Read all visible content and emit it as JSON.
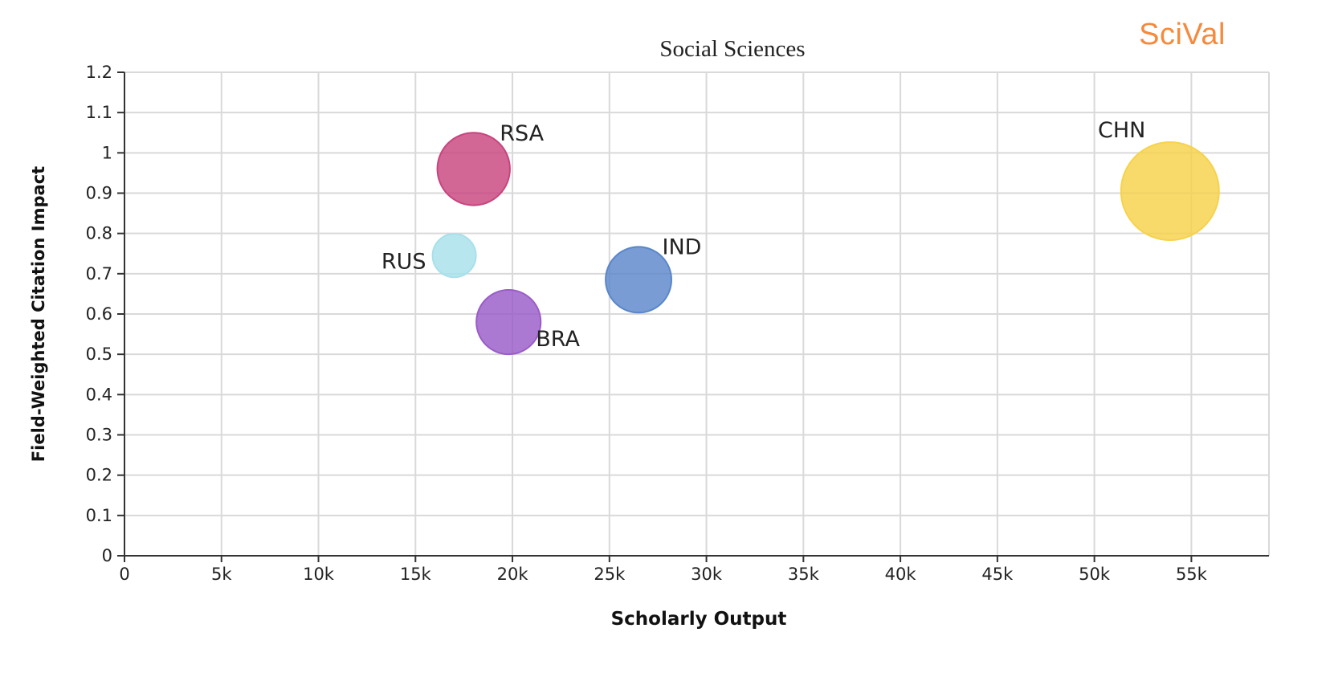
{
  "brand": {
    "name": "SciVal",
    "color": "#f58a3c"
  },
  "chart_data": {
    "type": "scatter",
    "subtype": "bubble",
    "title": "Social Sciences",
    "xlabel": "Scholarly Output",
    "ylabel": "Field-Weighted Citation Impact",
    "xlim": [
      0,
      59000
    ],
    "ylim": [
      0,
      1.2
    ],
    "xticks": [
      0,
      5000,
      10000,
      15000,
      20000,
      25000,
      30000,
      35000,
      40000,
      45000,
      50000,
      55000
    ],
    "xtick_labels": [
      "0",
      "5k",
      "10k",
      "15k",
      "20k",
      "25k",
      "30k",
      "35k",
      "40k",
      "45k",
      "50k",
      "55k"
    ],
    "yticks": [
      0,
      0.1,
      0.2,
      0.3,
      0.4,
      0.5,
      0.6,
      0.7,
      0.8,
      0.9,
      1,
      1.1,
      1.2
    ],
    "ytick_labels": [
      "0",
      "0.1",
      "0.2",
      "0.3",
      "0.4",
      "0.5",
      "0.6",
      "0.7",
      "0.8",
      "0.9",
      "1",
      "1.1",
      "1.2"
    ],
    "grid": true,
    "legend": "none",
    "points": [
      {
        "label": "RSA",
        "x": 18000,
        "y": 0.96,
        "size": 2.8,
        "color": "#c8447e",
        "label_pos": "upper-right"
      },
      {
        "label": "RUS",
        "x": 17000,
        "y": 0.745,
        "size": 1.0,
        "color": "#a7e0ec",
        "label_pos": "left"
      },
      {
        "label": "BRA",
        "x": 19800,
        "y": 0.58,
        "size": 2.2,
        "color": "#9a5cc8",
        "label_pos": "lower-right"
      },
      {
        "label": "IND",
        "x": 26500,
        "y": 0.685,
        "size": 2.3,
        "color": "#5a86c9",
        "label_pos": "upper-right"
      },
      {
        "label": "CHN",
        "x": 53900,
        "y": 0.905,
        "size": 5.1,
        "color": "#f7d24a",
        "label_pos": "upper-left"
      }
    ]
  }
}
